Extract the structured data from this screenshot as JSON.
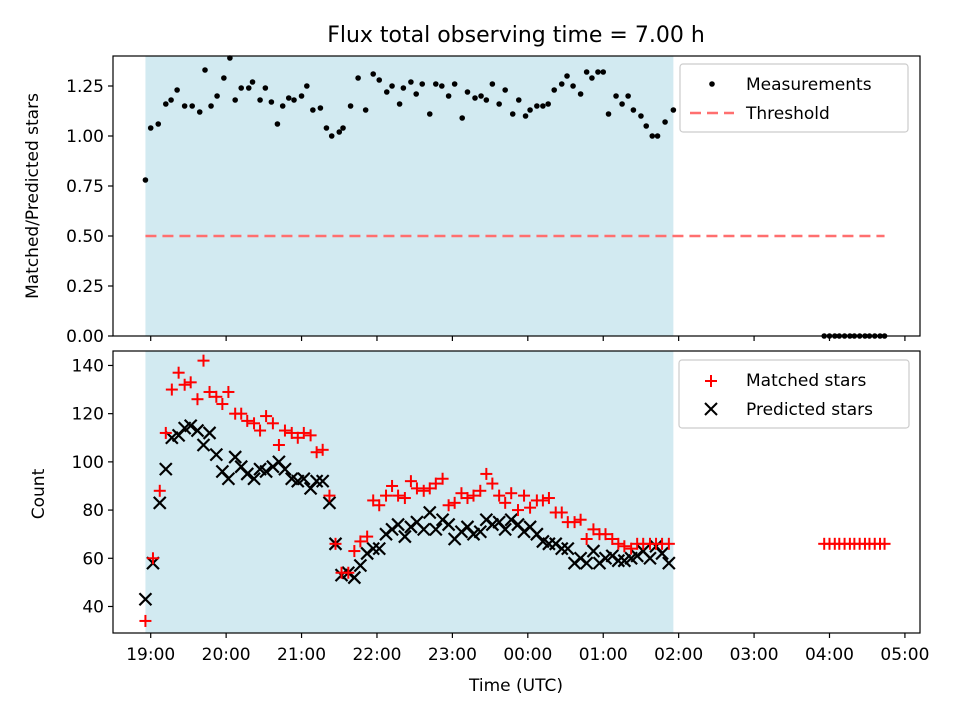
{
  "figure": {
    "title": "Flux total observing time = 7.00 h",
    "x_axis_label": "Time (UTC)",
    "x_tick_labels": [
      "19:00",
      "20:00",
      "21:00",
      "22:00",
      "23:00",
      "00:00",
      "01:00",
      "02:00",
      "03:00",
      "04:00",
      "05:00"
    ]
  },
  "chart_data": [
    {
      "type": "scatter",
      "panel": "top",
      "ylabel": "Matched/Predicted stars",
      "x_unit": "hours after 19:00 UTC",
      "xlim": [
        -0.5,
        10.2
      ],
      "ylim": [
        0,
        1.4
      ],
      "yticks": [
        "0.00",
        "0.25",
        "0.50",
        "0.75",
        "1.00",
        "1.25"
      ],
      "shaded_interval": [
        -0.07,
        6.93
      ],
      "shade_color": "#add8e6",
      "grid": false,
      "legend_position": "upper right",
      "series": [
        {
          "name": "Measurements",
          "marker": "dot",
          "color": "#000000",
          "x": [
            -0.07,
            0.0,
            0.1,
            0.2,
            0.27,
            0.35,
            0.45,
            0.55,
            0.65,
            0.72,
            0.8,
            0.88,
            0.97,
            1.05,
            1.12,
            1.2,
            1.3,
            1.35,
            1.45,
            1.52,
            1.6,
            1.68,
            1.75,
            1.83,
            1.9,
            2.0,
            2.07,
            2.15,
            2.25,
            2.33,
            2.4,
            2.5,
            2.55,
            2.65,
            2.75,
            2.85,
            2.95,
            3.03,
            3.13,
            3.2,
            3.3,
            3.35,
            3.45,
            3.52,
            3.6,
            3.7,
            3.78,
            3.86,
            3.95,
            4.03,
            4.13,
            4.2,
            4.3,
            4.38,
            4.45,
            4.53,
            4.62,
            4.7,
            4.8,
            4.88,
            4.97,
            5.03,
            5.12,
            5.2,
            5.27,
            5.35,
            5.45,
            5.52,
            5.6,
            5.7,
            5.78,
            5.85,
            5.93,
            6.0,
            6.07,
            6.17,
            6.25,
            6.33,
            6.4,
            6.5,
            6.57,
            6.65,
            6.72,
            6.82,
            6.93
          ],
          "y": [
            0.78,
            1.04,
            1.06,
            1.16,
            1.18,
            1.23,
            1.15,
            1.15,
            1.12,
            1.33,
            1.15,
            1.2,
            1.29,
            1.39,
            1.18,
            1.24,
            1.24,
            1.27,
            1.18,
            1.24,
            1.17,
            1.06,
            1.15,
            1.19,
            1.18,
            1.2,
            1.25,
            1.13,
            1.14,
            1.04,
            1.0,
            1.02,
            1.04,
            1.15,
            1.29,
            1.13,
            1.31,
            1.28,
            1.22,
            1.25,
            1.16,
            1.24,
            1.27,
            1.21,
            1.26,
            1.11,
            1.26,
            1.25,
            1.2,
            1.26,
            1.09,
            1.22,
            1.19,
            1.2,
            1.18,
            1.26,
            1.16,
            1.23,
            1.11,
            1.18,
            1.1,
            1.13,
            1.15,
            1.15,
            1.16,
            1.23,
            1.26,
            1.3,
            1.25,
            1.21,
            1.32,
            1.29,
            1.32,
            1.32,
            1.11,
            1.2,
            1.16,
            1.2,
            1.13,
            1.1,
            1.05,
            1.0,
            1.0,
            1.07,
            1.13
          ]
        },
        {
          "name": "Measurements",
          "marker": "dot",
          "color": "#000000",
          "x": [
            8.93,
            9.0,
            9.07,
            9.13,
            9.2,
            9.27,
            9.33,
            9.4,
            9.47,
            9.53,
            9.6,
            9.67,
            9.73
          ],
          "y": [
            0,
            0,
            0,
            0,
            0,
            0,
            0,
            0,
            0,
            0,
            0,
            0,
            0
          ]
        },
        {
          "name": "Threshold",
          "type": "line",
          "style": "dashed",
          "color": "#ff6f6f",
          "x": [
            -0.07,
            9.73
          ],
          "y": [
            0.5,
            0.5
          ]
        }
      ]
    },
    {
      "type": "scatter",
      "panel": "bottom",
      "ylabel": "Count",
      "xlabel": "Time (UTC)",
      "x_unit": "hours after 19:00 UTC",
      "xlim": [
        -0.5,
        10.2
      ],
      "ylim": [
        29,
        146
      ],
      "yticks": [
        "40",
        "60",
        "80",
        "100",
        "120",
        "140"
      ],
      "shaded_interval": [
        -0.07,
        6.93
      ],
      "shade_color": "#add8e6",
      "grid": false,
      "legend_position": "upper right",
      "series": [
        {
          "name": "Matched stars",
          "marker": "plus",
          "color": "#ff0000",
          "x": [
            -0.07,
            0.03,
            0.12,
            0.2,
            0.28,
            0.37,
            0.45,
            0.53,
            0.62,
            0.7,
            0.78,
            0.87,
            0.95,
            1.03,
            1.12,
            1.2,
            1.28,
            1.37,
            1.45,
            1.53,
            1.62,
            1.7,
            1.78,
            1.87,
            1.95,
            2.03,
            2.12,
            2.2,
            2.28,
            2.37,
            2.45,
            2.53,
            2.62,
            2.7,
            2.78,
            2.87,
            2.95,
            3.03,
            3.12,
            3.2,
            3.28,
            3.37,
            3.45,
            3.53,
            3.62,
            3.7,
            3.78,
            3.87,
            3.95,
            4.03,
            4.12,
            4.2,
            4.28,
            4.37,
            4.45,
            4.53,
            4.62,
            4.7,
            4.78,
            4.87,
            4.95,
            5.03,
            5.12,
            5.2,
            5.28,
            5.37,
            5.45,
            5.53,
            5.62,
            5.7,
            5.78,
            5.87,
            5.95,
            6.03,
            6.12,
            6.2,
            6.28,
            6.37,
            6.45,
            6.53,
            6.62,
            6.7,
            6.78,
            6.87,
            8.93,
            9.0,
            9.07,
            9.13,
            9.2,
            9.27,
            9.33,
            9.4,
            9.47,
            9.53,
            9.6,
            9.67,
            9.73
          ],
          "y": [
            34,
            60,
            88,
            112,
            130,
            137,
            132,
            133,
            126,
            142,
            129,
            127,
            124,
            129,
            120,
            120,
            117,
            116,
            113,
            119,
            116,
            107,
            113,
            112,
            110,
            112,
            111,
            104,
            105,
            86,
            66,
            54,
            54,
            63,
            67,
            69,
            84,
            82,
            86,
            90,
            86,
            85,
            92,
            89,
            88,
            89,
            91,
            93,
            82,
            83,
            87,
            85,
            86,
            88,
            95,
            91,
            86,
            83,
            87,
            80,
            86,
            81,
            84,
            84,
            85,
            79,
            79,
            75,
            75,
            76,
            68,
            72,
            70,
            70,
            68,
            66,
            65,
            64,
            66,
            66,
            66,
            66,
            66,
            66,
            66,
            66,
            66,
            66,
            66,
            66,
            66,
            66,
            66,
            66,
            66,
            66,
            66
          ],
          "note": "last 13 values correspond to the isolated points after 04:00"
        },
        {
          "name": "Predicted stars",
          "marker": "x",
          "color": "#000000",
          "x": [
            -0.07,
            0.03,
            0.12,
            0.2,
            0.28,
            0.37,
            0.45,
            0.53,
            0.62,
            0.7,
            0.78,
            0.87,
            0.95,
            1.03,
            1.12,
            1.2,
            1.28,
            1.37,
            1.45,
            1.53,
            1.62,
            1.7,
            1.78,
            1.87,
            1.95,
            2.03,
            2.12,
            2.2,
            2.28,
            2.37,
            2.45,
            2.53,
            2.62,
            2.7,
            2.78,
            2.87,
            2.95,
            3.03,
            3.12,
            3.2,
            3.28,
            3.37,
            3.45,
            3.53,
            3.62,
            3.7,
            3.78,
            3.87,
            3.95,
            4.03,
            4.12,
            4.2,
            4.28,
            4.37,
            4.45,
            4.53,
            4.62,
            4.7,
            4.78,
            4.87,
            4.95,
            5.03,
            5.12,
            5.2,
            5.28,
            5.37,
            5.45,
            5.53,
            5.62,
            5.7,
            5.78,
            5.87,
            5.95,
            6.03,
            6.12,
            6.2,
            6.28,
            6.37,
            6.45,
            6.53,
            6.62,
            6.7,
            6.78,
            6.87
          ],
          "y": [
            43,
            58,
            83,
            97,
            110,
            111,
            114,
            115,
            113,
            107,
            112,
            103,
            96,
            93,
            102,
            98,
            95,
            93,
            97,
            96,
            98,
            100,
            97,
            93,
            92,
            93,
            89,
            92,
            92,
            83,
            66,
            53,
            54,
            52,
            57,
            62,
            64,
            64,
            70,
            72,
            74,
            69,
            73,
            75,
            72,
            79,
            72,
            76,
            74,
            68,
            71,
            73,
            70,
            71,
            76,
            74,
            75,
            72,
            76,
            74,
            71,
            73,
            70,
            67,
            66,
            66,
            64,
            64,
            58,
            60,
            58,
            63,
            58,
            60,
            61,
            59,
            59,
            60,
            61,
            63,
            60,
            65,
            62,
            58
          ]
        }
      ]
    }
  ]
}
